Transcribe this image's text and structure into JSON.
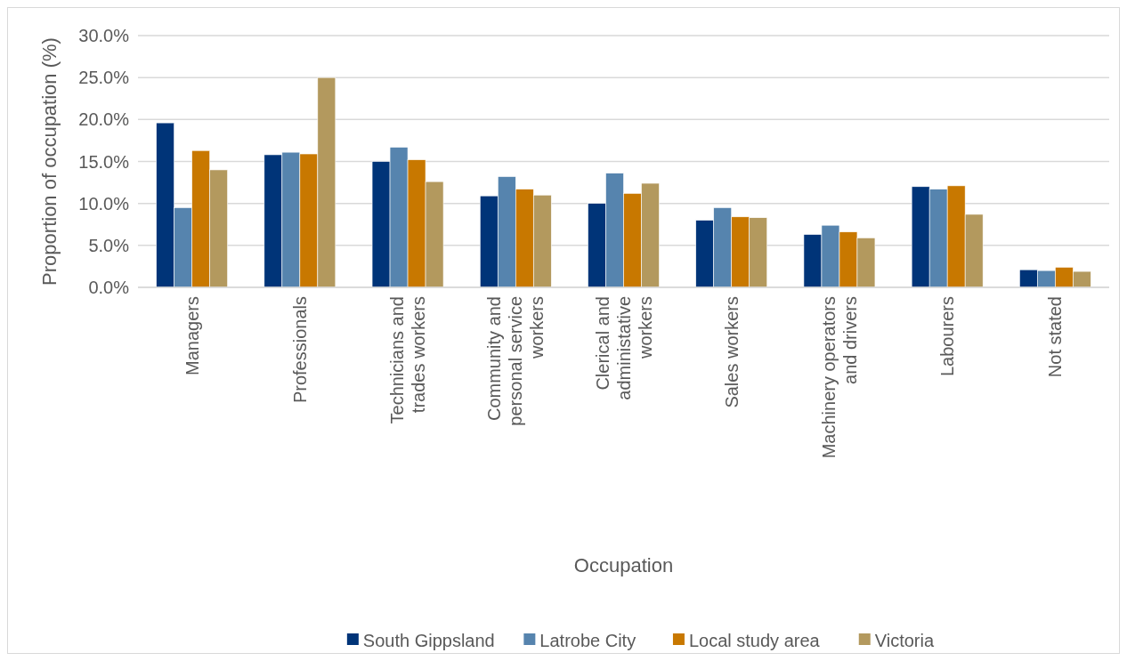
{
  "chart_data": {
    "type": "bar",
    "xlabel": "Occupation",
    "ylabel": "Proportion of occupation (%)",
    "categories": [
      "Managers",
      "Professionals",
      "Technicians and trades workers",
      "Community and personal service workers",
      "Clerical and administative workers",
      "Sales workers",
      "Machinery operators and drivers",
      "Labourers",
      "Not stated"
    ],
    "series": [
      {
        "name": "South Gippsland",
        "color": "#003478",
        "values": [
          19.6,
          15.8,
          15.0,
          10.9,
          10.0,
          8.0,
          6.3,
          12.0,
          2.1
        ]
      },
      {
        "name": "Latrobe City",
        "color": "#5684ae",
        "values": [
          9.5,
          16.1,
          16.7,
          13.2,
          13.6,
          9.5,
          7.4,
          11.7,
          2.0
        ]
      },
      {
        "name": "Local study area",
        "color": "#c87800",
        "values": [
          16.3,
          15.9,
          15.2,
          11.7,
          11.2,
          8.4,
          6.6,
          12.1,
          2.4
        ]
      },
      {
        "name": "Victoria",
        "color": "#b3995e",
        "values": [
          14.0,
          25.0,
          12.6,
          11.0,
          12.4,
          8.3,
          5.9,
          8.7,
          1.9
        ]
      }
    ],
    "ylim": [
      0,
      30
    ],
    "yticks": [
      {
        "value": 0,
        "label": "0.0%"
      },
      {
        "value": 5,
        "label": "5.0%"
      },
      {
        "value": 10,
        "label": "10.0%"
      },
      {
        "value": 15,
        "label": "15.0%"
      },
      {
        "value": 20,
        "label": "20.0%"
      },
      {
        "value": 25,
        "label": "25.0%"
      },
      {
        "value": 30,
        "label": "30.0%"
      }
    ],
    "grid": "y",
    "legend": "bottom"
  }
}
